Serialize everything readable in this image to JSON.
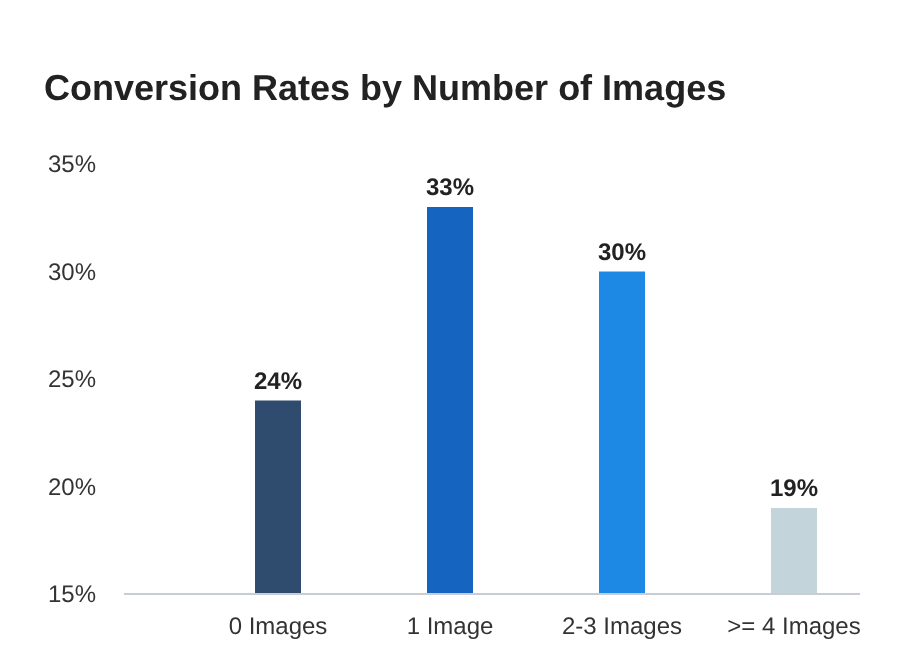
{
  "chart_data": {
    "type": "bar",
    "title": "Conversion Rates by Number of Images",
    "categories": [
      "0 Images",
      "1 Image",
      "2-3 Images",
      ">= 4 Images"
    ],
    "values": [
      24,
      33,
      30,
      19
    ],
    "colors": [
      "#2f4b6e",
      "#1565c0",
      "#1e88e5",
      "#c3d4db"
    ],
    "value_labels": [
      "24%",
      "33%",
      "30%",
      "19%"
    ],
    "ylim": [
      15,
      35
    ],
    "yticks": [
      {
        "value": 15,
        "label": "15%"
      },
      {
        "value": 20,
        "label": "20%"
      },
      {
        "value": 25,
        "label": "25%"
      },
      {
        "value": 30,
        "label": "30%"
      },
      {
        "value": 35,
        "label": "35%"
      }
    ],
    "grid": false
  }
}
